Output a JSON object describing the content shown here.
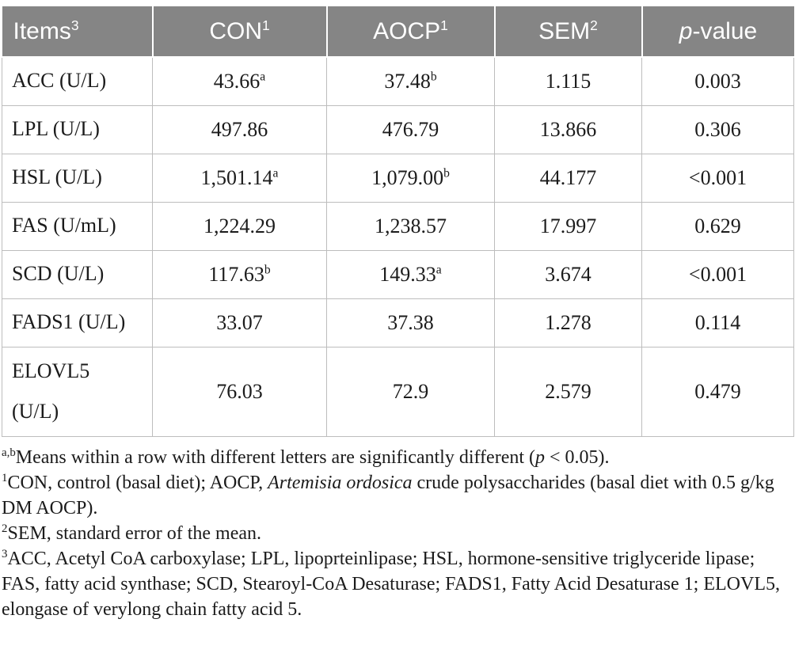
{
  "colors": {
    "header_bg": "#858585",
    "header_text": "#ffffff",
    "border": "#bdbdbd",
    "text": "#1b1b1b"
  },
  "table": {
    "header_cells": [
      {
        "name": "items",
        "segments": [
          {
            "t": "Items",
            "s": "n"
          },
          {
            "t": "3",
            "s": "sup"
          }
        ]
      },
      {
        "name": "con",
        "segments": [
          {
            "t": "CON",
            "s": "n"
          },
          {
            "t": "1",
            "s": "sup"
          }
        ]
      },
      {
        "name": "aocp",
        "segments": [
          {
            "t": "AOCP",
            "s": "n"
          },
          {
            "t": "1",
            "s": "sup"
          }
        ]
      },
      {
        "name": "sem",
        "segments": [
          {
            "t": "SEM",
            "s": "n"
          },
          {
            "t": "2",
            "s": "sup"
          }
        ]
      },
      {
        "name": "p-value",
        "segments": [
          {
            "t": "p",
            "s": "i"
          },
          {
            "t": "-value",
            "s": "n"
          }
        ]
      }
    ],
    "rows": [
      {
        "item_lines": [
          "ACC (U/L)"
        ],
        "values": [
          [
            {
              "t": "43.66",
              "s": "n"
            },
            {
              "t": "a",
              "s": "sup"
            }
          ],
          [
            {
              "t": "37.48",
              "s": "n"
            },
            {
              "t": "b",
              "s": "sup"
            }
          ],
          [
            {
              "t": "1.115",
              "s": "n"
            }
          ],
          [
            {
              "t": "0.003",
              "s": "n"
            }
          ]
        ]
      },
      {
        "item_lines": [
          "LPL (U/L)"
        ],
        "values": [
          [
            {
              "t": "497.86",
              "s": "n"
            }
          ],
          [
            {
              "t": "476.79",
              "s": "n"
            }
          ],
          [
            {
              "t": "13.866",
              "s": "n"
            }
          ],
          [
            {
              "t": "0.306",
              "s": "n"
            }
          ]
        ]
      },
      {
        "item_lines": [
          "HSL (U/L)"
        ],
        "values": [
          [
            {
              "t": "1,501.14",
              "s": "n"
            },
            {
              "t": "a",
              "s": "sup"
            }
          ],
          [
            {
              "t": "1,079.00",
              "s": "n"
            },
            {
              "t": "b",
              "s": "sup"
            }
          ],
          [
            {
              "t": "44.177",
              "s": "n"
            }
          ],
          [
            {
              "t": "<0.001",
              "s": "n"
            }
          ]
        ]
      },
      {
        "item_lines": [
          "FAS (U/mL)"
        ],
        "values": [
          [
            {
              "t": "1,224.29",
              "s": "n"
            }
          ],
          [
            {
              "t": "1,238.57",
              "s": "n"
            }
          ],
          [
            {
              "t": "17.997",
              "s": "n"
            }
          ],
          [
            {
              "t": "0.629",
              "s": "n"
            }
          ]
        ]
      },
      {
        "item_lines": [
          "SCD (U/L)"
        ],
        "values": [
          [
            {
              "t": "117.63",
              "s": "n"
            },
            {
              "t": "b",
              "s": "sup"
            }
          ],
          [
            {
              "t": "149.33",
              "s": "n"
            },
            {
              "t": "a",
              "s": "sup"
            }
          ],
          [
            {
              "t": "3.674",
              "s": "n"
            }
          ],
          [
            {
              "t": "<0.001",
              "s": "n"
            }
          ]
        ]
      },
      {
        "item_lines": [
          "FADS1 (U/L)"
        ],
        "values": [
          [
            {
              "t": "33.07",
              "s": "n"
            }
          ],
          [
            {
              "t": "37.38",
              "s": "n"
            }
          ],
          [
            {
              "t": "1.278",
              "s": "n"
            }
          ],
          [
            {
              "t": "0.114",
              "s": "n"
            }
          ]
        ]
      },
      {
        "item_lines": [
          "ELOVL5",
          "(U/L)"
        ],
        "values": [
          [
            {
              "t": "76.03",
              "s": "n"
            }
          ],
          [
            {
              "t": "72.9",
              "s": "n"
            }
          ],
          [
            {
              "t": "2.579",
              "s": "n"
            }
          ],
          [
            {
              "t": "0.479",
              "s": "n"
            }
          ]
        ]
      }
    ]
  },
  "footnotes": [
    {
      "segments": [
        {
          "t": "a,b",
          "s": "sup"
        },
        {
          "t": "Means within a row with different letters are significantly different (",
          "s": "n"
        },
        {
          "t": "p",
          "s": "i"
        },
        {
          "t": " < 0.05).",
          "s": "n"
        }
      ]
    },
    {
      "segments": [
        {
          "t": "1",
          "s": "sup"
        },
        {
          "t": "CON, control (basal diet); AOCP, ",
          "s": "n"
        },
        {
          "t": "Artemisia ordosica",
          "s": "i"
        },
        {
          "t": " crude polysaccharides (basal diet with 0.5 g/kg DM AOCP).",
          "s": "n"
        }
      ]
    },
    {
      "segments": [
        {
          "t": "2",
          "s": "sup"
        },
        {
          "t": "SEM, standard error of the mean.",
          "s": "n"
        }
      ]
    },
    {
      "segments": [
        {
          "t": "3",
          "s": "sup"
        },
        {
          "t": "ACC, Acetyl CoA carboxylase; LPL, lipoprteinlipase; HSL, hormone-sensitive triglyceride lipase; FAS, fatty acid synthase; SCD, Stearoyl-CoA Desaturase; FADS1, Fatty Acid Desaturase 1; ELOVL5, elongase of verylong chain fatty acid 5.",
          "s": "n"
        }
      ]
    }
  ]
}
